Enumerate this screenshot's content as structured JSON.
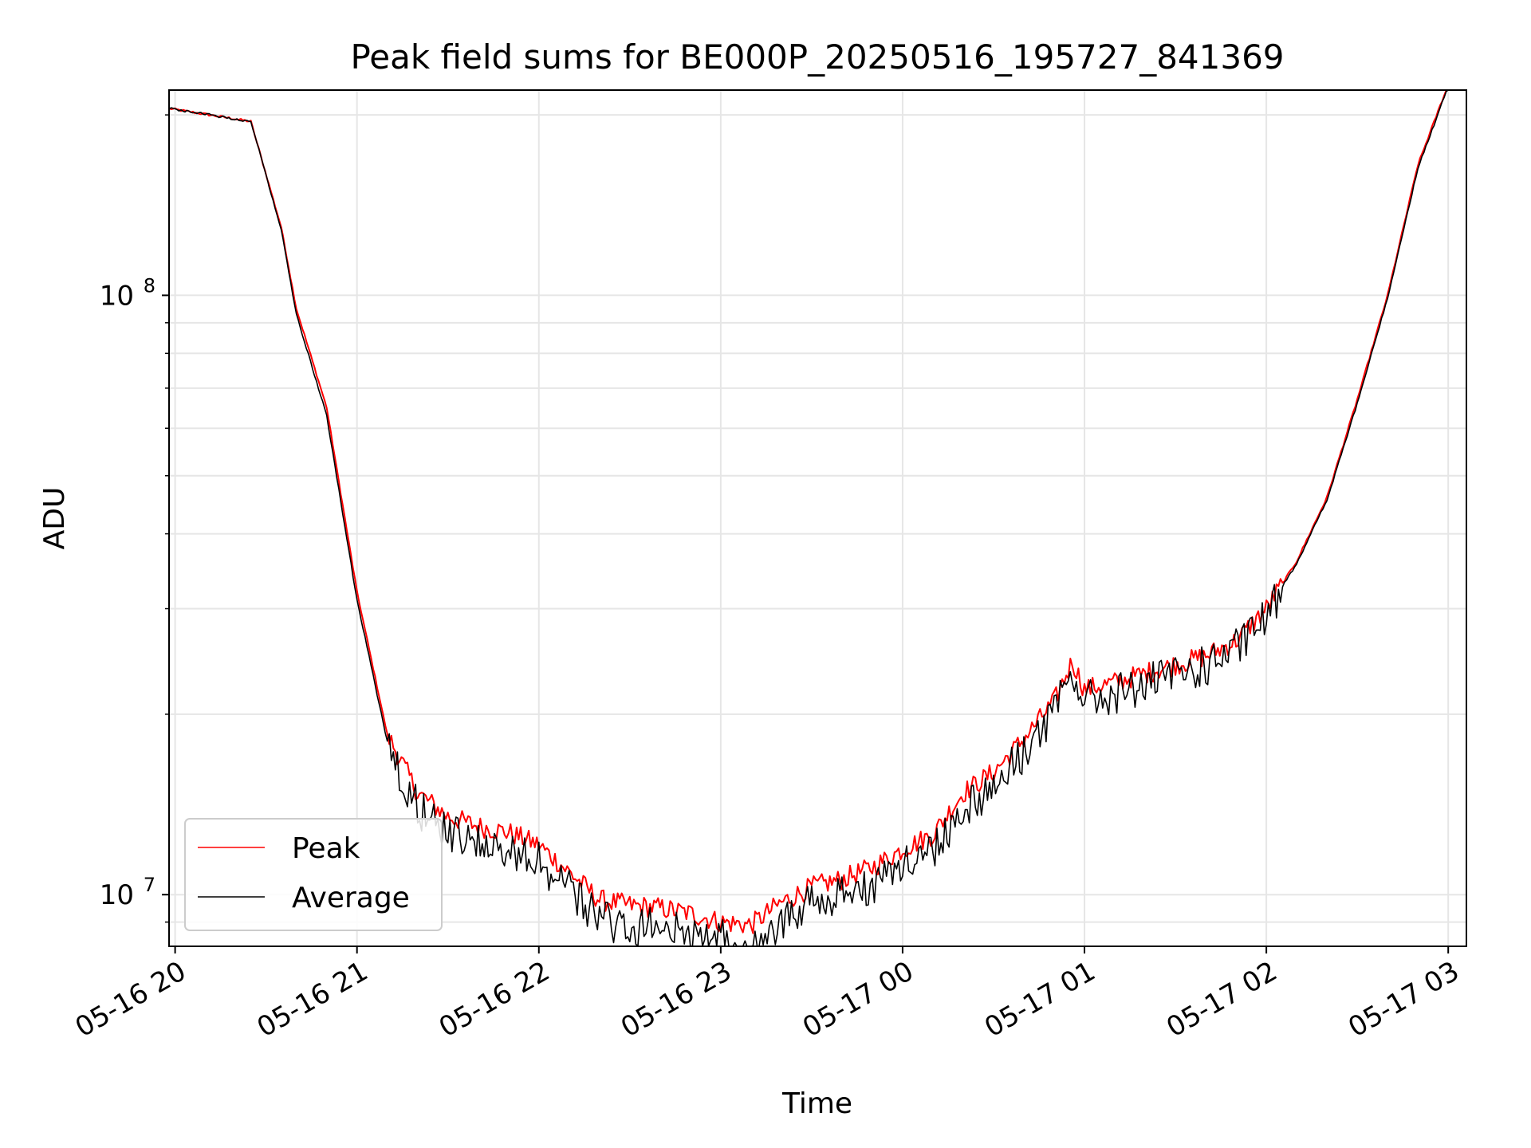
{
  "chart_data": {
    "type": "line",
    "title": "Peak field sums for BE000P_20250516_195727_841369",
    "xlabel": "Time",
    "ylabel": "ADU",
    "yscale": "log",
    "ylim": [
      8200000,
      220000000
    ],
    "xlim": [
      "05-16 19:58",
      "05-17 03:06"
    ],
    "x_ticks": [
      "05-16 20",
      "05-16 21",
      "05-16 22",
      "05-16 23",
      "05-17 00",
      "05-17 01",
      "05-17 02",
      "05-17 03"
    ],
    "y_ticks": [
      {
        "value": 10000000,
        "base": "10",
        "exp": "7"
      },
      {
        "value": 100000000,
        "base": "10",
        "exp": "8"
      }
    ],
    "grid": true,
    "legend_position": "lower-left",
    "series": [
      {
        "name": "Peak",
        "color": "#ff0000",
        "x": [
          "05-16 19:58",
          "05-16 20:25",
          "05-16 20:35",
          "05-16 20:40",
          "05-16 20:50",
          "05-16 21:00",
          "05-16 21:10",
          "05-16 21:20",
          "05-16 21:30",
          "05-16 21:40",
          "05-16 21:50",
          "05-16 22:00",
          "05-16 22:10",
          "05-16 22:20",
          "05-16 22:30",
          "05-16 22:40",
          "05-16 22:50",
          "05-16 23:00",
          "05-16 23:10",
          "05-16 23:20",
          "05-16 23:30",
          "05-16 23:40",
          "05-16 23:50",
          "05-17 00:00",
          "05-17 00:10",
          "05-17 00:20",
          "05-17 00:30",
          "05-17 00:40",
          "05-17 00:50",
          "05-17 00:56",
          "05-17 01:00",
          "05-17 01:10",
          "05-17 01:20",
          "05-17 01:30",
          "05-17 01:40",
          "05-17 01:50",
          "05-17 02:00",
          "05-17 02:10",
          "05-17 02:20",
          "05-17 02:30",
          "05-17 02:40",
          "05-17 02:50",
          "05-17 03:00"
        ],
        "y": [
          205000000,
          195000000,
          130000000,
          95000000,
          65000000,
          32000000,
          18500000,
          14800000,
          13500000,
          13000000,
          12700000,
          12100000,
          10900000,
          9800000,
          9600000,
          9500000,
          9300000,
          9000000,
          8900000,
          9700000,
          10300000,
          10600000,
          11100000,
          11900000,
          12600000,
          14800000,
          16000000,
          18200000,
          21000000,
          24500000,
          22000000,
          22600000,
          23400000,
          24200000,
          25000000,
          26500000,
          30000000,
          36000000,
          46000000,
          67000000,
          100000000,
          165000000,
          225000000
        ]
      },
      {
        "name": "Average",
        "color": "#000000",
        "x": [
          "05-16 19:58",
          "05-16 20:25",
          "05-16 20:35",
          "05-16 20:40",
          "05-16 20:50",
          "05-16 21:00",
          "05-16 21:10",
          "05-16 21:20",
          "05-16 21:30",
          "05-16 21:40",
          "05-16 21:50",
          "05-16 22:00",
          "05-16 22:10",
          "05-16 22:20",
          "05-16 22:30",
          "05-16 22:40",
          "05-16 22:50",
          "05-16 23:00",
          "05-16 23:10",
          "05-16 23:20",
          "05-16 23:30",
          "05-16 23:40",
          "05-16 23:50",
          "05-17 00:00",
          "05-17 00:10",
          "05-17 00:20",
          "05-17 00:30",
          "05-17 00:40",
          "05-17 00:50",
          "05-17 00:56",
          "05-17 01:00",
          "05-17 01:10",
          "05-17 01:20",
          "05-17 01:30",
          "05-17 01:40",
          "05-17 01:50",
          "05-17 02:00",
          "05-17 02:10",
          "05-17 02:20",
          "05-17 02:30",
          "05-17 02:40",
          "05-17 02:50",
          "05-17 03:00"
        ],
        "y": [
          205000000,
          195000000,
          129000000,
          93000000,
          63000000,
          31000000,
          18000000,
          14300000,
          13000000,
          12500000,
          12200000,
          11600000,
          10400000,
          9300000,
          9100000,
          9000000,
          8800000,
          8600000,
          8500000,
          9300000,
          9900000,
          10200000,
          10700000,
          11500000,
          12200000,
          14300000,
          15500000,
          17700000,
          20500000,
          24000000,
          21500000,
          22100000,
          22900000,
          23700000,
          24600000,
          26200000,
          29700000,
          35700000,
          45500000,
          66000000,
          99000000,
          163000000,
          223000000
        ]
      }
    ]
  }
}
